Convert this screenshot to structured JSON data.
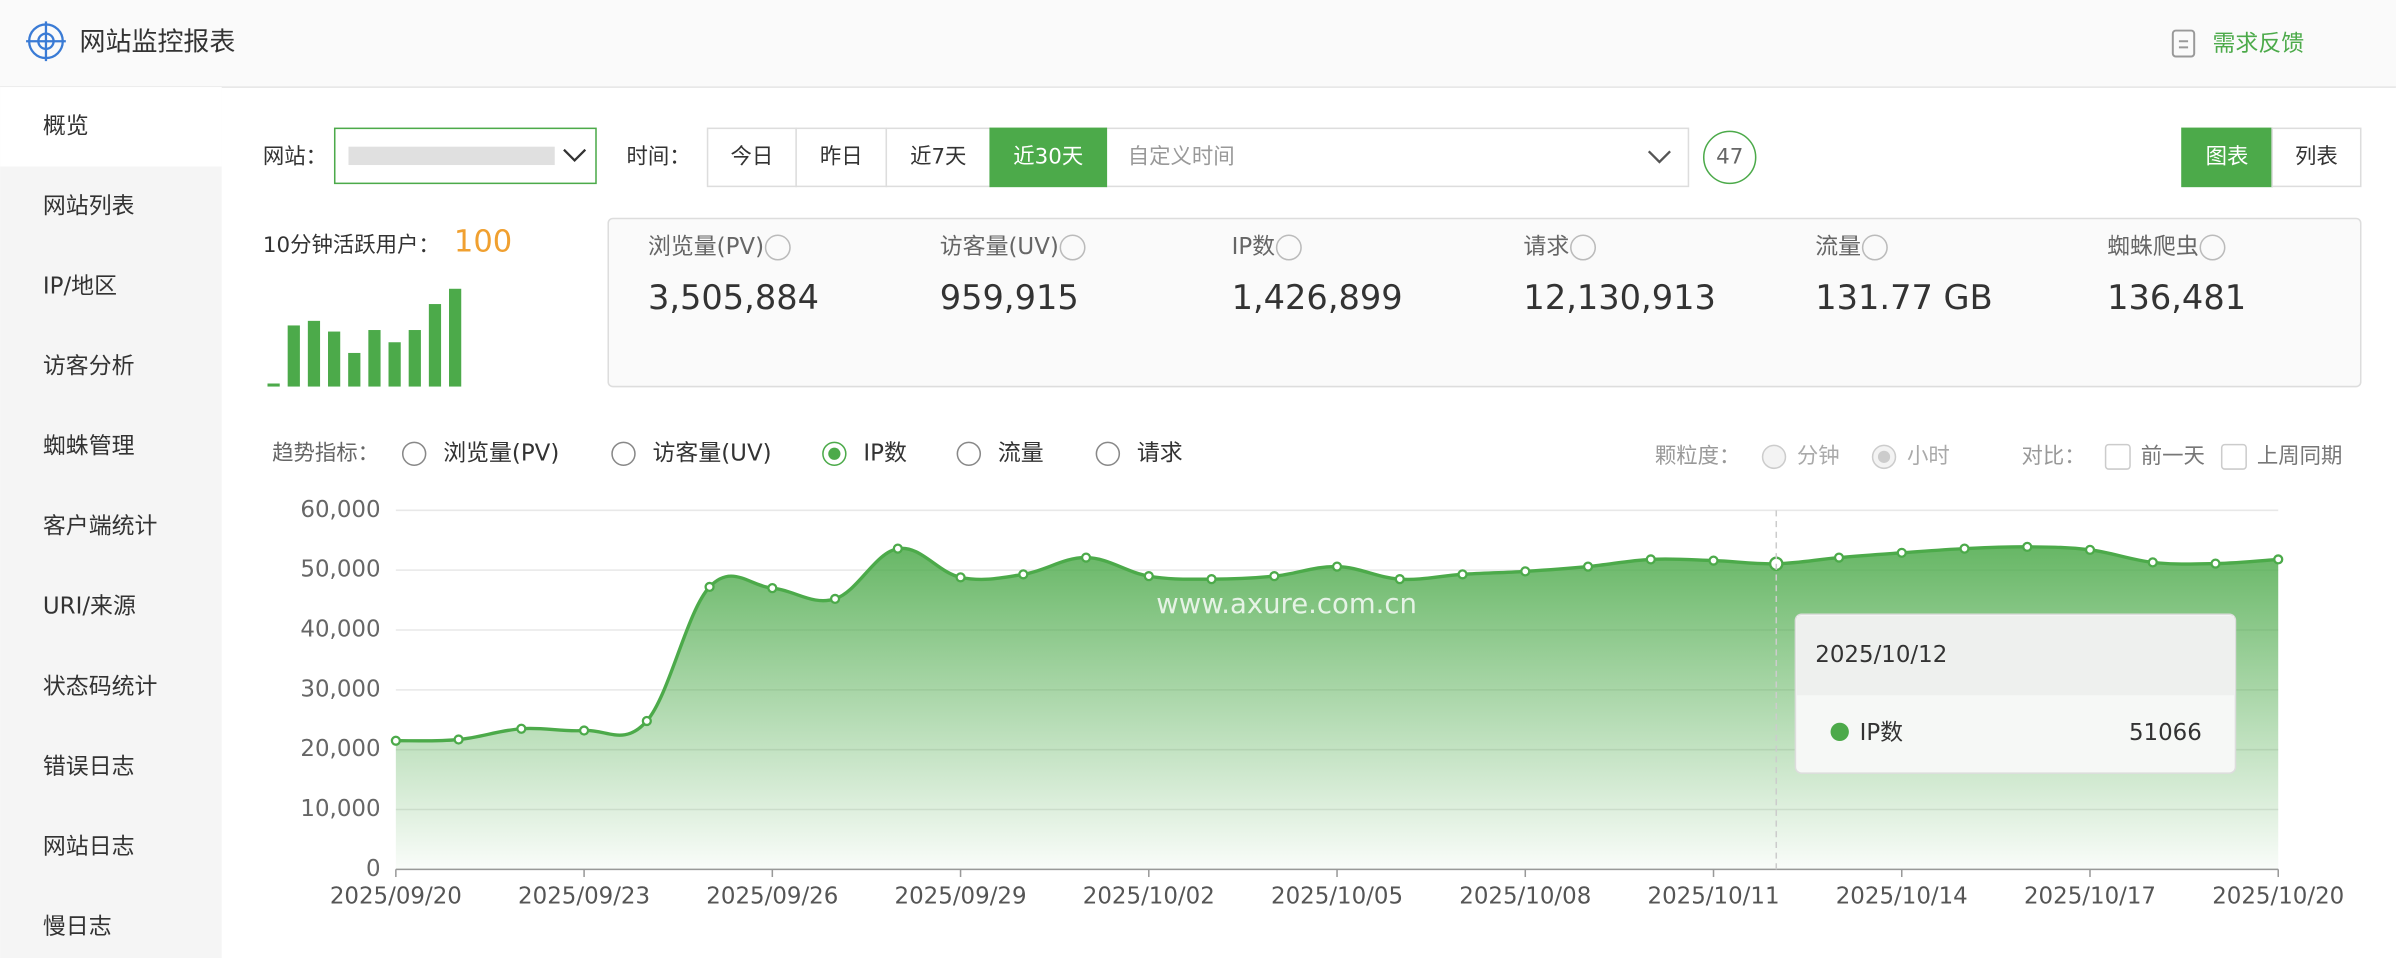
{
  "header": {
    "title": "网站监控报表",
    "feedback": "需求反馈"
  },
  "sidebar": {
    "items": [
      "概览",
      "网站列表",
      "IP/地区",
      "访客分析",
      "蜘蛛管理",
      "客户端统计",
      "URI/来源",
      "状态码统计",
      "错误日志",
      "网站日志",
      "慢日志"
    ]
  },
  "filters": {
    "site_label": "网站：",
    "time_label": "时间：",
    "time_options": [
      "今日",
      "昨日",
      "近7天",
      "近30天"
    ],
    "custom_time": "自定义时间",
    "count": "47",
    "views": [
      "图表",
      "列表"
    ]
  },
  "active_users": {
    "label": "10分钟活跃用户：",
    "value": "100",
    "bars": [
      2,
      40,
      43,
      36,
      22,
      37,
      29,
      37,
      54,
      64
    ]
  },
  "stats": [
    {
      "label": "浏览量(PV)",
      "value": "3,505,884"
    },
    {
      "label": "访客量(UV)",
      "value": "959,915"
    },
    {
      "label": "IP数",
      "value": "1,426,899"
    },
    {
      "label": "请求",
      "value": "12,130,913"
    },
    {
      "label": "流量",
      "value": "131.77 GB"
    },
    {
      "label": "蜘蛛爬虫",
      "value": "136,481"
    }
  ],
  "trend": {
    "label": "趋势指标：",
    "metrics": [
      "浏览量(PV)",
      "访客量(UV)",
      "IP数",
      "流量",
      "请求"
    ],
    "granularity_label": "颗粒度：",
    "granularity": [
      "分钟",
      "小时"
    ],
    "compare_label": "对比：",
    "compare": [
      "前一天",
      "上周同期"
    ]
  },
  "chart_data": {
    "type": "area",
    "watermark": "www.axure.com.cn",
    "x": [
      "2025/09/20",
      "2025/09/21",
      "2025/09/22",
      "2025/09/23",
      "2025/09/24",
      "2025/09/25",
      "2025/09/26",
      "2025/09/27",
      "2025/09/28",
      "2025/09/29",
      "2025/09/30",
      "2025/10/01",
      "2025/10/02",
      "2025/10/03",
      "2025/10/04",
      "2025/10/05",
      "2025/10/06",
      "2025/10/07",
      "2025/10/08",
      "2025/10/09",
      "2025/10/10",
      "2025/10/11",
      "2025/10/12",
      "2025/10/13",
      "2025/10/14",
      "2025/10/15",
      "2025/10/16",
      "2025/10/17",
      "2025/10/18",
      "2025/10/19",
      "2025/10/20"
    ],
    "series": [
      {
        "name": "IP数",
        "color": "#4caa4a",
        "values": [
          21500,
          21700,
          23500,
          23200,
          24800,
          47200,
          47000,
          45200,
          53600,
          48800,
          49300,
          52100,
          49000,
          48500,
          49000,
          50600,
          48500,
          49300,
          49800,
          50600,
          51800,
          51600,
          51066,
          52100,
          52900,
          53600,
          53900,
          53400,
          51300,
          51100,
          51800
        ]
      }
    ],
    "ylim": [
      0,
      60000
    ],
    "yticks": [
      0,
      {
        "value": 10000,
        "label": "10,000"
      },
      {
        "value": 20000,
        "label": "20,000"
      },
      {
        "value": 30000,
        "label": "30,000"
      },
      {
        "value": 40000,
        "label": "40,000"
      },
      {
        "value": 50000,
        "label": "50,000"
      },
      {
        "value": 60000,
        "label": "60,000"
      }
    ],
    "grid": true
  }
}
